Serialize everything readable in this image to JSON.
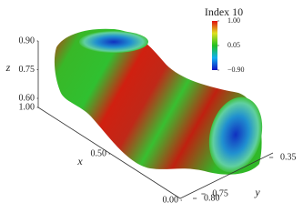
{
  "chart_data": {
    "type": "surface3d",
    "title": "Index 10",
    "xlabel": "x",
    "ylabel": "y",
    "zlabel": "z",
    "xlim": [
      1.0,
      0.0
    ],
    "xticks": [
      {
        "value": 1.0,
        "label": "1.00"
      },
      {
        "value": 0.5,
        "label": "0.50"
      },
      {
        "value": 0.0,
        "label": "0.00"
      }
    ],
    "ylim": [
      0.8,
      0.35
    ],
    "yticks": [
      {
        "value": 0.8,
        "label": "0.80"
      },
      {
        "value": 0.75,
        "label": "0.75"
      },
      0.35
    ],
    "zlim": [
      0.9,
      0.6
    ],
    "zticks": [
      {
        "value": 0.9,
        "label": "0.90"
      },
      0.75,
      {
        "value": 0.6,
        "label": "0.60"
      }
    ],
    "colorbar": {
      "lim": [
        -0.9,
        1.0
      ],
      "ticks": [
        {
          "value": 1.0,
          "label": "1.00"
        },
        0.05,
        {
          "value": -0.9,
          "label": "−0.90"
        }
      ],
      "colormap": [
        "#1010c0",
        "#10b0f0",
        "#20c020",
        "#e0e020",
        "#e01010"
      ]
    }
  }
}
